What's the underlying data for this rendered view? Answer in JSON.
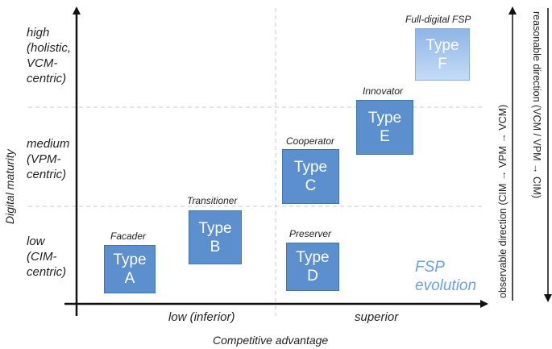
{
  "y_axis": {
    "title": "Digital maturity",
    "levels": [
      {
        "label": "high\n(holistic,\nVCM-\ncentric)"
      },
      {
        "label": "medium\n(VPM-\ncentric)"
      },
      {
        "label": "low\n(CIM-\ncentric)"
      }
    ]
  },
  "x_axis": {
    "title": "Competitive advantage",
    "levels": [
      {
        "label": "low (inferior)"
      },
      {
        "label": "superior"
      }
    ]
  },
  "types": [
    {
      "name": "Facader",
      "line1": "Type",
      "line2": "A"
    },
    {
      "name": "Transitioner",
      "line1": "Type",
      "line2": "B"
    },
    {
      "name": "Cooperator",
      "line1": "Type",
      "line2": "C"
    },
    {
      "name": "Preserver",
      "line1": "Type",
      "line2": "D"
    },
    {
      "name": "Innovator",
      "line1": "Type",
      "line2": "E"
    },
    {
      "name": "Full-digital FSP",
      "line1": "Type",
      "line2": "F"
    }
  ],
  "evolution_label": "FSP\nevolution",
  "side_labels": {
    "observable": "observable direction (CIM → VPM → VCM)",
    "reasonable": "reasonable direction (VCM / VPM → CIM)"
  },
  "colors": {
    "box_fill": "#5b8fce",
    "box_border": "#3f74b4",
    "box_light": "#a9c8ee",
    "evolution_text": "#6aa2dc",
    "grid_dash": "#c8c8c8"
  }
}
